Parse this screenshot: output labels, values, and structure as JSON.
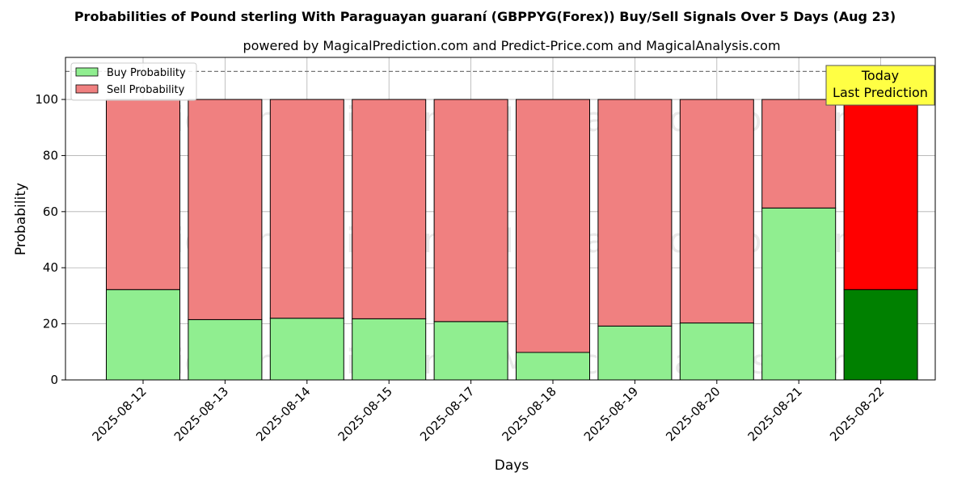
{
  "chart_data": {
    "type": "bar",
    "stacked": true,
    "title": "Probabilities of Pound sterling With Paraguayan guaraní (GBPPYG(Forex)) Buy/Sell Signals Over 5 Days (Aug 23)",
    "subtitle": "powered by MagicalPrediction.com and Predict-Price.com and MagicalAnalysis.com",
    "xlabel": "Days",
    "ylabel": "Probability",
    "ylim": [
      0,
      115
    ],
    "yticks": [
      0,
      20,
      40,
      60,
      80,
      100
    ],
    "grid": true,
    "reference_line": 110,
    "legend_position": "top-left",
    "categories": [
      "2025-08-12",
      "2025-08-13",
      "2025-08-14",
      "2025-08-15",
      "2025-08-17",
      "2025-08-18",
      "2025-08-19",
      "2025-08-20",
      "2025-08-21",
      "2025-08-22"
    ],
    "series": [
      {
        "name": "Buy Probability",
        "values": [
          32.2,
          21.5,
          22.0,
          21.8,
          20.8,
          9.8,
          19.2,
          20.3,
          61.3,
          32.2
        ],
        "color": "#90ee90",
        "highlight_color": "#008000"
      },
      {
        "name": "Sell Probability",
        "values": [
          67.8,
          78.5,
          78.0,
          78.2,
          79.2,
          90.2,
          80.8,
          79.7,
          38.7,
          67.8
        ],
        "color": "#f08080",
        "highlight_color": "#ff0000"
      }
    ],
    "highlight_index": 9,
    "annotation": {
      "line1": "Today",
      "line2": "Last Prediction",
      "color": "#ffff44"
    },
    "watermarks": [
      "MagicalAnalysis.com",
      "MagicalPrediction.com"
    ]
  }
}
